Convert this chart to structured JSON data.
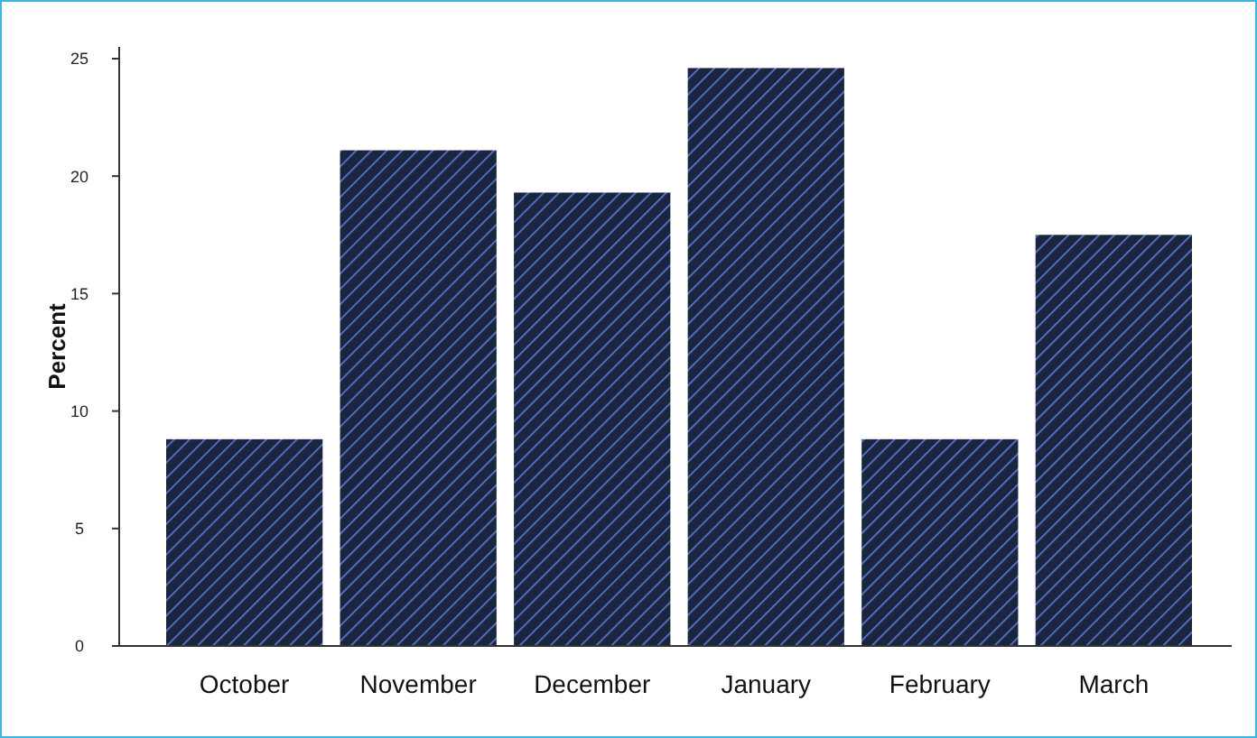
{
  "chart_data": {
    "type": "bar",
    "ylabel": "Percent",
    "categories": [
      "October",
      "November",
      "December",
      "January",
      "February",
      "March"
    ],
    "values": [
      8.8,
      21.1,
      19.3,
      24.6,
      8.8,
      17.5
    ],
    "color": "#1c2540",
    "ylim": [
      0,
      25.5
    ],
    "yticks": [
      0,
      5,
      10,
      15,
      20,
      25
    ],
    "grid": false
  }
}
